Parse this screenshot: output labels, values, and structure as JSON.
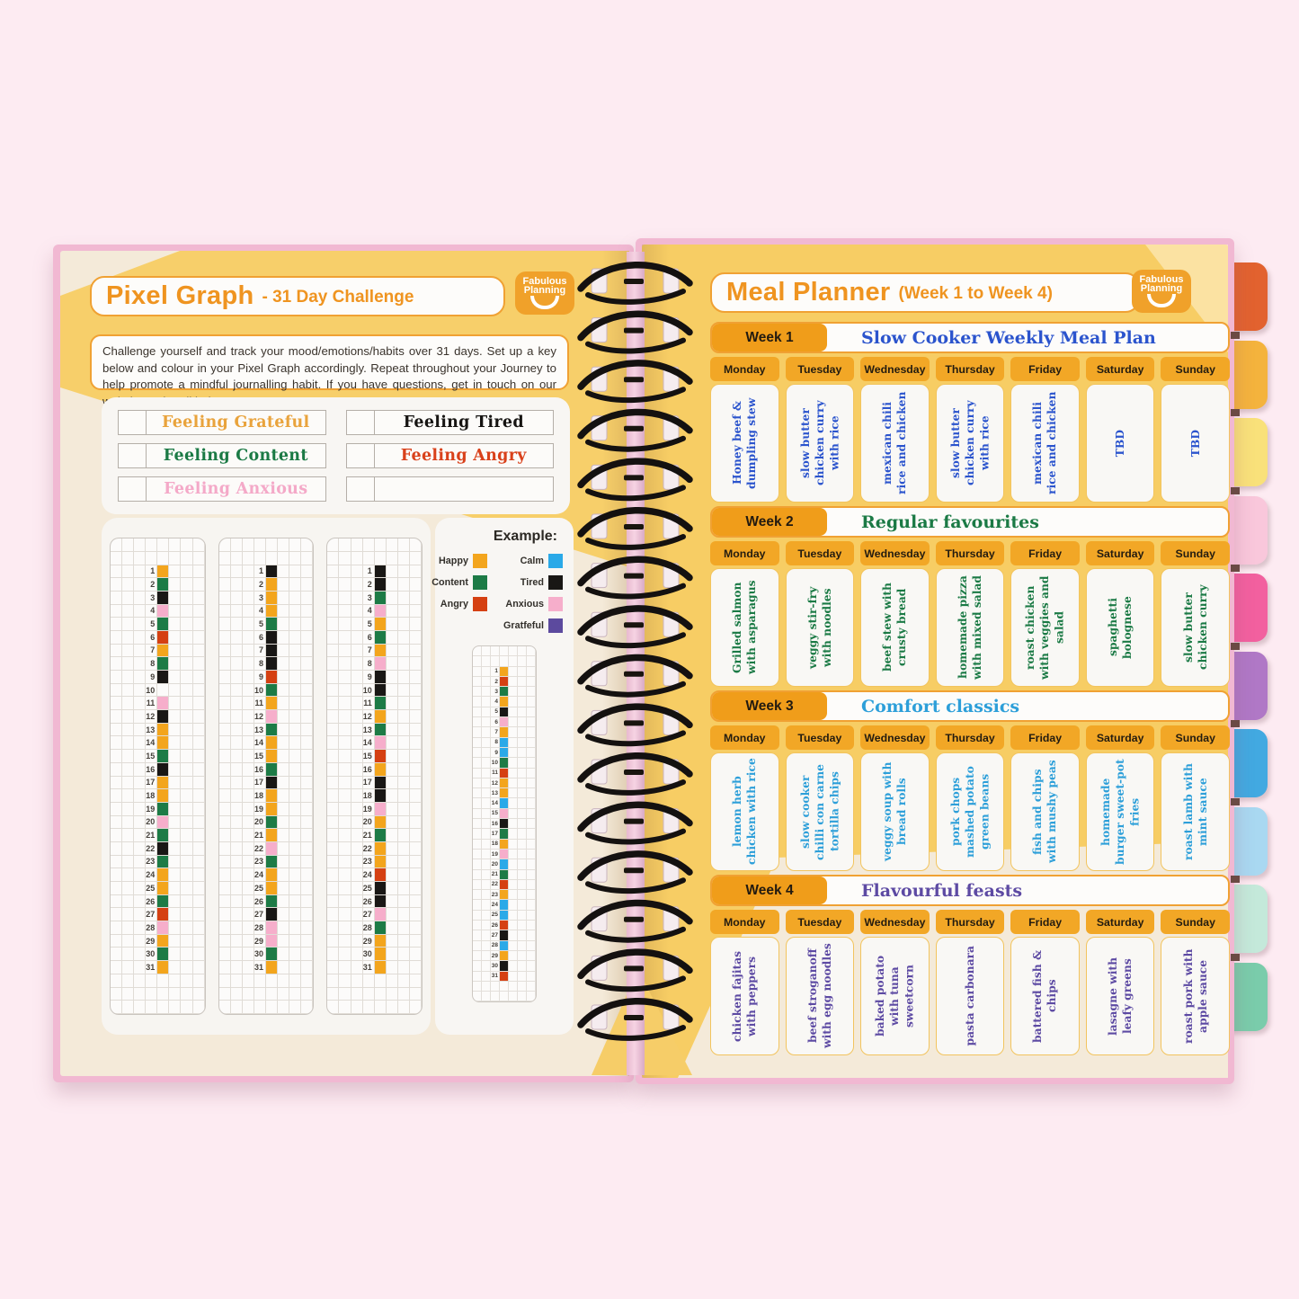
{
  "logo": {
    "line1": "Fabulous",
    "line2": "Planning"
  },
  "mood_colors": {
    "O": "#f3a51d",
    "G": "#1d7b46",
    "K": "#191715",
    "P": "#f6aecb",
    "R": "#d54012",
    "B": "#2aa9e8",
    "V": "#5c4a9e"
  },
  "left_page": {
    "title": "Pixel Graph",
    "title_suffix": "- 31 Day Challenge",
    "description": "Challenge yourself and track your mood/emotions/habits over 31 days. Set up a key below and colour in your Pixel Graph accordingly. Repeat throughout your Journey to help promote a mindful journalling habit. If you have questions, get in touch on our website and we'll help.",
    "key_slots": [
      {
        "label": "Feeling Grateful",
        "color": "#e9a33c"
      },
      {
        "label": "Feeling Tired",
        "color": "#161412"
      },
      {
        "label": "Feeling Content",
        "color": "#1b7a45"
      },
      {
        "label": "Feeling Angry",
        "color": "#d9411b"
      },
      {
        "label": "Feeling Anxious",
        "color": "#f4a9c8"
      },
      {
        "label": "",
        "color": ""
      }
    ],
    "pixel_columns": [
      [
        "O",
        "G",
        "K",
        "P",
        "G",
        "R",
        "O",
        "G",
        "K",
        "",
        "P",
        "K",
        "O",
        "O",
        "G",
        "K",
        "O",
        "O",
        "G",
        "P",
        "G",
        "K",
        "G",
        "O",
        "O",
        "G",
        "R",
        "P",
        "O",
        "G",
        "O"
      ],
      [
        "K",
        "O",
        "O",
        "O",
        "G",
        "K",
        "K",
        "K",
        "R",
        "G",
        "O",
        "P",
        "G",
        "O",
        "O",
        "G",
        "K",
        "O",
        "O",
        "G",
        "O",
        "P",
        "G",
        "O",
        "O",
        "G",
        "K",
        "P",
        "P",
        "G",
        "O"
      ],
      [
        "K",
        "K",
        "G",
        "P",
        "O",
        "G",
        "O",
        "P",
        "K",
        "K",
        "G",
        "O",
        "G",
        "P",
        "R",
        "O",
        "K",
        "K",
        "P",
        "O",
        "G",
        "O",
        "O",
        "R",
        "K",
        "K",
        "P",
        "G",
        "O",
        "O",
        "O"
      ]
    ],
    "example": {
      "title": "Example:",
      "legend_rows": [
        [
          {
            "label": "Happy",
            "key": "O"
          },
          {
            "label": "Calm",
            "key": "B"
          }
        ],
        [
          {
            "label": "Content",
            "key": "G"
          },
          {
            "label": "Tired",
            "key": "K"
          }
        ],
        [
          {
            "label": "Angry",
            "key": "R"
          },
          {
            "label": "Anxious",
            "key": "P"
          }
        ],
        [
          null,
          {
            "label": "Gratfeful",
            "key": "V"
          }
        ]
      ],
      "column": [
        "O",
        "R",
        "G",
        "O",
        "K",
        "P",
        "O",
        "B",
        "B",
        "G",
        "R",
        "O",
        "O",
        "B",
        "P",
        "K",
        "G",
        "O",
        "P",
        "B",
        "G",
        "R",
        "O",
        "B",
        "B",
        "R",
        "K",
        "B",
        "O",
        "K",
        "R"
      ]
    }
  },
  "right_page": {
    "title": "Meal Planner",
    "title_suffix": "(Week 1 to Week 4)",
    "days": [
      "Monday",
      "Tuesday",
      "Wednesday",
      "Thursday",
      "Friday",
      "Saturday",
      "Sunday"
    ],
    "weeks": [
      {
        "label": "Week 1",
        "theme": "Slow Cooker Weekly Meal Plan",
        "color": "#2b54cd",
        "meals": [
          "Honey beef & dumpling stew",
          "slow butter chicken curry with rice",
          "mexican chili rice and chicken",
          "slow butter chicken curry with rice",
          "mexican chili rice and chicken",
          "TBD",
          "TBD"
        ]
      },
      {
        "label": "Week 2",
        "theme": "Regular favourites",
        "color": "#1b7a45",
        "meals": [
          "Grilled salmon with asparagus",
          "veggy stir-fry with noodles",
          "beef stew with crusty bread",
          "homemade pizza with mixed salad",
          "roast chicken with veggies and salad",
          "spaghetti bolognese",
          "slow butter chicken curry"
        ]
      },
      {
        "label": "Week 3",
        "theme": "Comfort classics",
        "color": "#2d9fd9",
        "meals": [
          "lemon herb chicken with rice",
          "slow cooker chilli con carne tortilla chips",
          "veggy soup with bread rolls",
          "pork chops mashed potato green beans",
          "fish and chips with mushy peas",
          "homemade burger sweet-pot fries",
          "roast lamb with mint sauce"
        ]
      },
      {
        "label": "Week 4",
        "theme": "Flavourful feasts",
        "color": "#5d4aa3",
        "meals": [
          "chicken fajitas with peppers",
          "beef stroganoff with egg noodles",
          "baked potato with tuna sweetcorn",
          "pasta carbonara",
          "battered fish & chips",
          "lasagne with leafy greens",
          "roast pork with apple sauce"
        ]
      }
    ]
  },
  "tabs": [
    {
      "color": "#e2622f"
    },
    {
      "color": "#f4b33d"
    },
    {
      "color": "#f9e17a"
    },
    {
      "color": "#f9c7db"
    },
    {
      "color": "#f2609f"
    },
    {
      "color": "#b078c6"
    },
    {
      "color": "#42a9e1"
    },
    {
      "color": "#a9d8f1"
    },
    {
      "color": "#c4e9da"
    },
    {
      "color": "#7accab"
    }
  ]
}
